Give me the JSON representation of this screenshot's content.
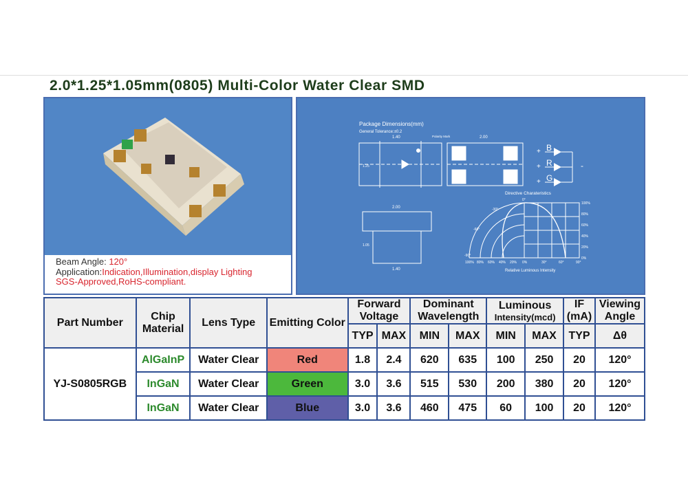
{
  "title": "2.0*1.25*1.05mm(0805) Multi-Color Water Clear SMD",
  "caption": {
    "beam_label": "Beam Angle: ",
    "beam_value": "120°",
    "app_label": "Application:",
    "app_value": "Indication,Illumination,display Lighting",
    "cert": "SGS-Approved,RoHS-compliant."
  },
  "drawing": {
    "pkg_title": "Package Dimensions(mm)",
    "tolerance": "General Tolerance:±0.2",
    "dim_140": "1.40",
    "dim_200": "2.00",
    "dim_125": "1.25",
    "dim_105": "1.05",
    "polarity": "Polarity Mark",
    "pins": [
      "B",
      "R",
      "G"
    ],
    "plus": "+",
    "minus": "-",
    "directive_title": "Directive Charateristics",
    "directive_xlabel": "Relative Luminous Intensity",
    "angle_ticks": [
      "0°",
      "-30°",
      "-60°",
      "-90°"
    ],
    "pct_ticks": [
      "100%",
      "80%",
      "60%",
      "40%",
      "20%",
      "0%"
    ],
    "x_ticks": [
      "100%",
      "80%",
      "60%",
      "40%",
      "20%",
      "0%",
      "30°",
      "60°",
      "90°"
    ]
  },
  "table": {
    "headers": {
      "part": "Part Number",
      "chip": "Chip Material",
      "lens": "Lens Type",
      "color": "Emitting Color",
      "vf": "Forward Voltage",
      "wl": "Dominant Wavelength",
      "lum": "Luminous",
      "lum_unit": "Intensity(mcd)",
      "if": "IF",
      "if_unit": "(mA)",
      "view": "Viewing Angle",
      "typ": "TYP",
      "max": "MAX",
      "min": "MIN",
      "delta": "Δθ"
    },
    "part_number": "YJ-S0805RGB",
    "rows": [
      {
        "chip": "AlGaInP",
        "lens": "Water Clear",
        "color": "Red",
        "swatch": "#f0857a",
        "vf_typ": "1.8",
        "vf_max": "2.4",
        "wl_min": "620",
        "wl_max": "635",
        "lum_min": "100",
        "lum_max": "250",
        "if": "20",
        "view": "120°"
      },
      {
        "chip": "InGaN",
        "lens": "Water Clear",
        "color": "Green",
        "swatch": "#4cb83c",
        "vf_typ": "3.0",
        "vf_max": "3.6",
        "wl_min": "515",
        "wl_max": "530",
        "lum_min": "200",
        "lum_max": "380",
        "if": "20",
        "view": "120°"
      },
      {
        "chip": "InGaN",
        "lens": "Water Clear",
        "color": "Blue",
        "swatch": "#5f5fa8",
        "vf_typ": "3.0",
        "vf_max": "3.6",
        "wl_min": "460",
        "wl_max": "475",
        "lum_min": "60",
        "lum_max": "100",
        "if": "20",
        "view": "120°"
      }
    ]
  }
}
